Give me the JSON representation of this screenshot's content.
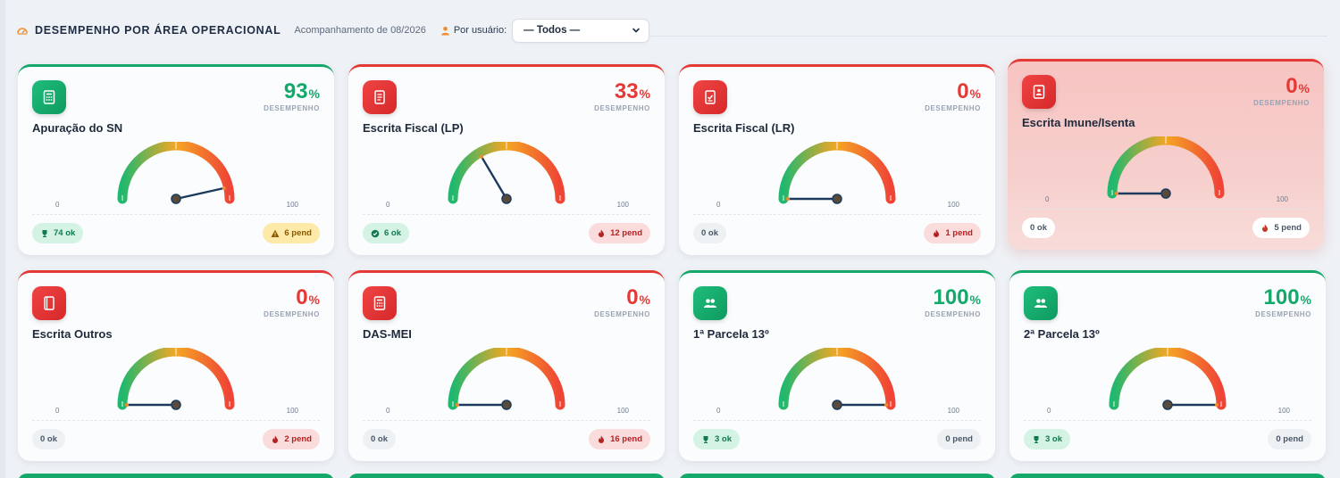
{
  "header": {
    "title": "DESEMPENHO POR ÁREA OPERACIONAL",
    "subtitle": "Acompanhamento de 08/2026",
    "user_label": "Por usuário:",
    "user_select_value": "— Todos —"
  },
  "gauge_labels": {
    "min": "0",
    "max": "100"
  },
  "perf_label": "DESEMPENHO",
  "percent_unit": "%",
  "cards": [
    {
      "title": "Apuração do SN",
      "value": "93",
      "ok": "74 ok",
      "pend": "6 pend",
      "icon": "calculator-icon",
      "tone": "green",
      "ok_style": "green",
      "pend_style": "yellow",
      "ok_icon": "trophy-icon",
      "pend_icon": "warning-icon"
    },
    {
      "title": "Escrita Fiscal (LP)",
      "value": "33",
      "ok": "6 ok",
      "pend": "12 pend",
      "icon": "notebook-icon",
      "tone": "red",
      "ok_style": "green",
      "pend_style": "red",
      "ok_icon": "check-circle-icon",
      "pend_icon": "fire-icon"
    },
    {
      "title": "Escrita Fiscal (LR)",
      "value": "0",
      "ok": "0 ok",
      "pend": "1 pend",
      "icon": "checklist-icon",
      "tone": "red",
      "ok_style": "gray",
      "pend_style": "red",
      "ok_icon": "",
      "pend_icon": "fire-icon"
    },
    {
      "title": "Escrita Imune/Isenta",
      "value": "0",
      "ok": "0 ok",
      "pend": "5 pend",
      "icon": "address-book-icon",
      "tone": "red",
      "ok_style": "white",
      "pend_style": "white",
      "ok_icon": "",
      "pend_icon": "fire-icon",
      "highlight": true
    },
    {
      "title": "Escrita Outros",
      "value": "0",
      "ok": "0 ok",
      "pend": "2 pend",
      "icon": "book-icon",
      "tone": "red",
      "ok_style": "gray",
      "pend_style": "red",
      "ok_icon": "",
      "pend_icon": "fire-icon"
    },
    {
      "title": "DAS-MEI",
      "value": "0",
      "ok": "0 ok",
      "pend": "16 pend",
      "icon": "calculator-icon",
      "tone": "red",
      "ok_style": "gray",
      "pend_style": "red",
      "ok_icon": "",
      "pend_icon": "fire-icon"
    },
    {
      "title": "1ª Parcela 13º",
      "value": "100",
      "ok": "3 ok",
      "pend": "0 pend",
      "icon": "users-icon",
      "tone": "green",
      "ok_style": "green",
      "pend_style": "gray",
      "ok_icon": "trophy-icon",
      "pend_icon": ""
    },
    {
      "title": "2ª Parcela 13º",
      "value": "100",
      "ok": "3 ok",
      "pend": "0 pend",
      "icon": "users-icon",
      "tone": "green",
      "ok_style": "green",
      "pend_style": "gray",
      "ok_icon": "trophy-icon",
      "pend_icon": ""
    }
  ],
  "colors": {
    "green": "#14a86b",
    "red": "#e53935",
    "gauge_start": "#1fb86e",
    "gauge_mid": "#f5a623",
    "gauge_end": "#ef4436",
    "needle": "#1c3a5e"
  }
}
